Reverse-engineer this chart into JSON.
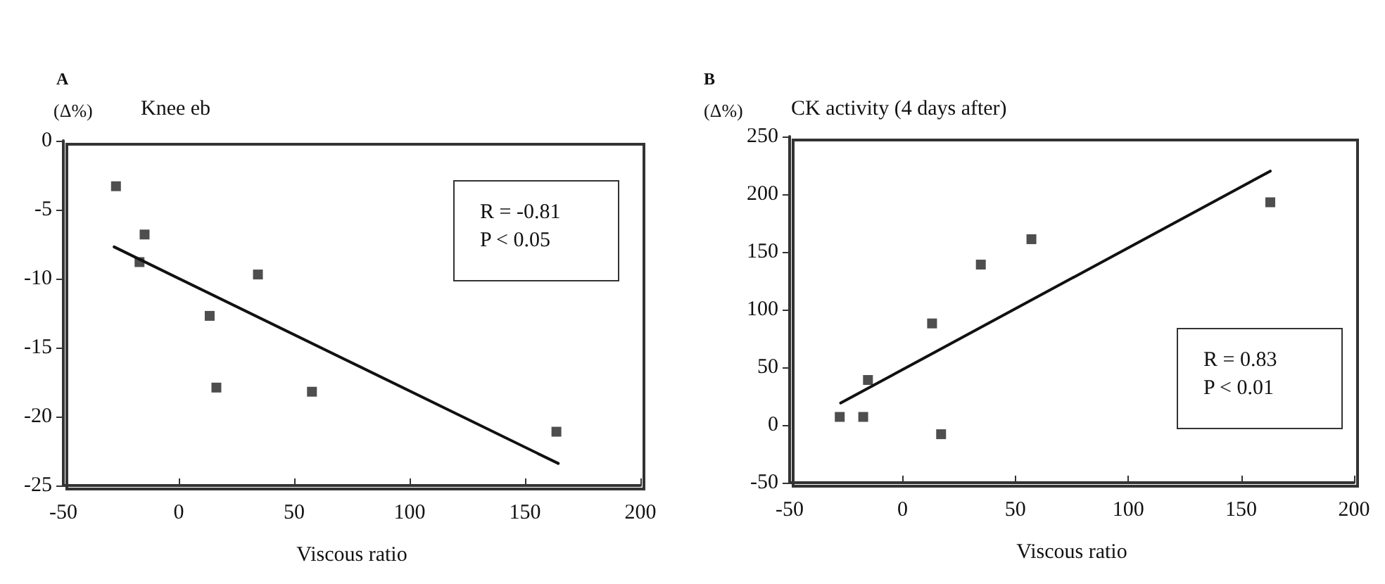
{
  "chart_data": [
    {
      "type": "scatter",
      "subtitle": "A",
      "title": "Knee eb",
      "ylabel": "(Δ%)",
      "xlabel": "Viscous ratio",
      "annotations": [
        "R = -0.81\nP < 0.05"
      ],
      "marker": "square",
      "grid": false,
      "xlim": [
        -50,
        200
      ],
      "xticks": [
        -50,
        0,
        50,
        100,
        150,
        200
      ],
      "ylim": [
        -25,
        0
      ],
      "yticks": [
        -25,
        -20,
        -15,
        -10,
        -5,
        0
      ],
      "series": [
        {
          "color": "#222222",
          "x": [
            -27.2,
            -17,
            -14.8,
            13.4,
            16.3,
            34.3,
            57.7,
            163.6
          ],
          "values": [
            -3.3,
            -8.8,
            -6.8,
            -12.7,
            -17.9,
            -9.7,
            -18.2,
            -21.1
          ]
        },
        {
          "type": "line",
          "marker": "none",
          "color": "#111111",
          "x": [
            -28,
            164.4
          ],
          "values": [
            -7.7,
            -23.4
          ]
        }
      ]
    },
    {
      "type": "scatter",
      "subtitle": "B",
      "title": "CK activity (4 days after)",
      "ylabel": "(Δ%)",
      "xlabel": "Viscous ratio",
      "annotations": [
        "R = 0.83\nP < 0.01"
      ],
      "marker": "square",
      "grid": false,
      "xlim": [
        -50,
        200
      ],
      "xticks": [
        -50,
        0,
        50,
        100,
        150,
        200
      ],
      "ylim": [
        -50,
        250
      ],
      "yticks": [
        -50,
        0,
        50,
        100,
        150,
        200,
        250
      ],
      "series": [
        {
          "color": "#222222",
          "x": [
            -27.8,
            -17.4,
            -15.3,
            13.1,
            17.1,
            34.7,
            57.1,
            162.9
          ],
          "values": [
            7,
            7,
            39,
            88,
            -8,
            139,
            161,
            193
          ]
        },
        {
          "type": "line",
          "marker": "none",
          "color": "#111111",
          "x": [
            -27.4,
            162.9
          ],
          "values": [
            19,
            220
          ]
        }
      ]
    }
  ]
}
